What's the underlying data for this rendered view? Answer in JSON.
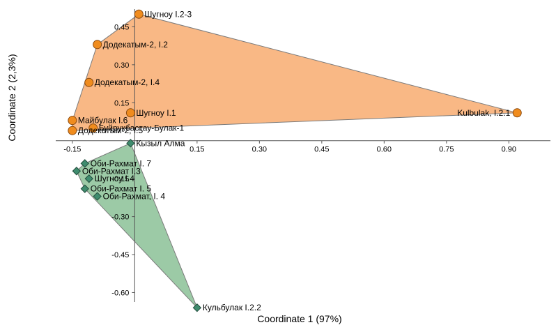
{
  "chart_data": {
    "type": "scatter",
    "xlabel": "Coordinate 1 (97%)",
    "ylabel": "Coordinate 2 (2,3%)",
    "xlim": [
      -0.19,
      1.0
    ],
    "ylim": [
      -0.72,
      0.52
    ],
    "x_ticks": [
      {
        "value": -0.15,
        "label": "-0.15"
      },
      {
        "value": 0.15,
        "label": "0.15"
      },
      {
        "value": 0.3,
        "label": "0.30"
      },
      {
        "value": 0.45,
        "label": "0.45"
      },
      {
        "value": 0.6,
        "label": "0.60"
      },
      {
        "value": 0.75,
        "label": "0.75"
      },
      {
        "value": 0.9,
        "label": "0.90"
      }
    ],
    "y_ticks": [
      {
        "value": 0.45,
        "label": "0.45"
      },
      {
        "value": 0.3,
        "label": "0.30"
      },
      {
        "value": 0.15,
        "label": "0.15"
      },
      {
        "value": -0.15,
        "label": "-0.15"
      },
      {
        "value": -0.3,
        "label": "-0.30"
      },
      {
        "value": -0.45,
        "label": "-0.45"
      },
      {
        "value": -0.6,
        "label": "-0.60"
      }
    ],
    "grid": false,
    "colors": {
      "group1_fill": "#f9b885",
      "group1_marker": "#f08c1e",
      "group1_edge": "#7a7a7a",
      "group2_fill": "#9ccaa6",
      "group2_marker": "#3f8c6e",
      "group2_edge": "#7a7a7a",
      "axis": "#555555"
    },
    "series": [
      {
        "marker": "circle",
        "points": [
          {
            "label": "Шугноу I.2-3",
            "x": 0.01,
            "y": 0.5
          },
          {
            "label": "Додекатым-2, I.2",
            "x": -0.09,
            "y": 0.38
          },
          {
            "label": "Додекатым-2, I.4",
            "x": -0.11,
            "y": 0.23
          },
          {
            "label": "Шугноу I.1",
            "x": -0.01,
            "y": 0.11
          },
          {
            "label": "Майбулак I.6",
            "x": -0.15,
            "y": 0.08
          },
          {
            "label": "Буйрукбастау-Булак-1",
            "x": -0.1,
            "y": 0.05
          },
          {
            "label": "Додекатым-2, I.5",
            "x": -0.15,
            "y": 0.04
          },
          {
            "label": "Kulbulak, I.2.1",
            "x": 0.92,
            "y": 0.11
          }
        ]
      },
      {
        "marker": "diamond",
        "points": [
          {
            "label": "Кызыл Алма",
            "x": -0.01,
            "y": -0.01
          },
          {
            "label": "Оби-Рахмат I. 7",
            "x": -0.12,
            "y": -0.09
          },
          {
            "label": "Оби-Рахмат I.3",
            "x": -0.14,
            "y": -0.12
          },
          {
            "label": "Шугноу I.4",
            "x": -0.11,
            "y": -0.15
          },
          {
            "label": "Оби-Рахмат I. 5",
            "x": -0.12,
            "y": -0.19
          },
          {
            "label": "Оби-Рахмат, I. 4",
            "x": -0.09,
            "y": -0.22
          },
          {
            "label": "Кульбулак I.2.2",
            "x": 0.15,
            "y": -0.66
          }
        ]
      }
    ]
  }
}
